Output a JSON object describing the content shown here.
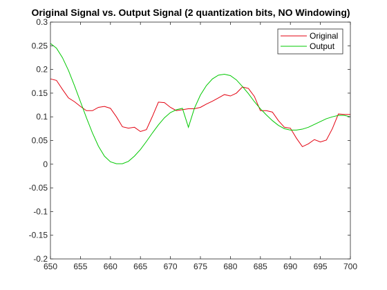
{
  "chart_data": {
    "type": "line",
    "title": "Original Signal vs. Output Signal (2 quantization bits, NO Windowing)",
    "xlabel": "",
    "ylabel": "",
    "xlim": [
      650,
      700
    ],
    "ylim": [
      -0.2,
      0.3
    ],
    "x_ticks": [
      650,
      655,
      660,
      665,
      670,
      675,
      680,
      685,
      690,
      695,
      700
    ],
    "x_tick_labels": [
      "650",
      "655",
      "660",
      "665",
      "670",
      "675",
      "680",
      "685",
      "690",
      "695",
      "700"
    ],
    "y_ticks": [
      -0.2,
      -0.15,
      -0.1,
      -0.05,
      0,
      0.05,
      0.1,
      0.15,
      0.2,
      0.25,
      0.3
    ],
    "y_tick_labels": [
      "-0.2",
      "-0.15",
      "-0.1",
      "-0.05",
      "0",
      "0.05",
      "0.1",
      "0.15",
      "0.2",
      "0.25",
      "0.3"
    ],
    "grid": false,
    "legend_position": "top-right",
    "series": [
      {
        "name": "Original",
        "color": "#e3000f",
        "x": [
          650,
          651,
          652,
          653,
          654,
          655,
          656,
          657,
          658,
          659,
          660,
          661,
          662,
          663,
          664,
          665,
          666,
          667,
          668,
          669,
          670,
          671,
          672,
          673,
          674,
          675,
          676,
          677,
          678,
          679,
          680,
          681,
          682,
          683,
          684,
          685,
          686,
          687,
          688,
          689,
          690,
          691,
          692,
          693,
          694,
          695,
          696,
          697,
          698,
          699,
          700
        ],
        "y": [
          0.18,
          0.177,
          0.158,
          0.14,
          0.132,
          0.122,
          0.113,
          0.113,
          0.12,
          0.122,
          0.118,
          0.1,
          0.079,
          0.076,
          0.078,
          0.069,
          0.073,
          0.101,
          0.131,
          0.13,
          0.12,
          0.113,
          0.115,
          0.117,
          0.117,
          0.12,
          0.127,
          0.133,
          0.14,
          0.147,
          0.144,
          0.15,
          0.163,
          0.16,
          0.143,
          0.113,
          0.113,
          0.11,
          0.092,
          0.078,
          0.076,
          0.055,
          0.037,
          0.043,
          0.052,
          0.047,
          0.051,
          0.075,
          0.106,
          0.105,
          0.105
        ]
      },
      {
        "name": "Output",
        "color": "#00c800",
        "x": [
          650,
          651,
          652,
          653,
          654,
          655,
          656,
          657,
          658,
          659,
          660,
          661,
          662,
          663,
          664,
          665,
          666,
          667,
          668,
          669,
          670,
          671,
          672,
          673,
          674,
          675,
          676,
          677,
          678,
          679,
          680,
          681,
          682,
          683,
          684,
          685,
          686,
          687,
          688,
          689,
          690,
          691,
          692,
          693,
          694,
          695,
          696,
          697,
          698,
          699,
          700
        ],
        "y": [
          0.255,
          0.245,
          0.225,
          0.198,
          0.166,
          0.132,
          0.098,
          0.066,
          0.038,
          0.017,
          0.005,
          0.001,
          0.001,
          0.006,
          0.017,
          0.031,
          0.048,
          0.066,
          0.083,
          0.098,
          0.109,
          0.115,
          0.118,
          0.078,
          0.118,
          0.146,
          0.166,
          0.18,
          0.188,
          0.19,
          0.187,
          0.178,
          0.164,
          0.149,
          0.132,
          0.117,
          0.104,
          0.092,
          0.082,
          0.075,
          0.072,
          0.072,
          0.074,
          0.078,
          0.084,
          0.09,
          0.096,
          0.1,
          0.103,
          0.103,
          0.1
        ]
      }
    ]
  }
}
